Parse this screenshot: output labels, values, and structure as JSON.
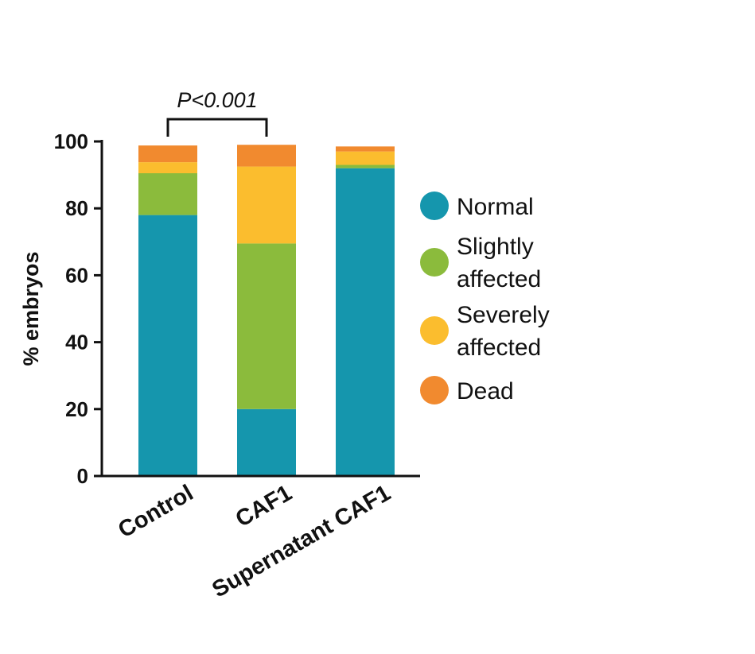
{
  "chart_data": {
    "type": "bar",
    "stacked": true,
    "title": "",
    "xlabel": "",
    "ylabel": "% embryos",
    "ylim": [
      0,
      100
    ],
    "yticks": [
      "0",
      "20",
      "40",
      "60",
      "80",
      "100"
    ],
    "categories": [
      "Control",
      "CAF1",
      "Supernatant CAF1"
    ],
    "series": [
      {
        "name": "Normal",
        "color": "#1596ad",
        "values": [
          78,
          20,
          92
        ]
      },
      {
        "name": "Slightly affected",
        "color": "#8bbb3c",
        "values": [
          12.5,
          49.5,
          1
        ]
      },
      {
        "name": "Severely affected",
        "color": "#fbbd2e",
        "values": [
          3.3,
          23,
          4
        ]
      },
      {
        "name": "Dead",
        "color": "#f18a2f",
        "values": [
          5,
          6.5,
          1.5
        ]
      }
    ],
    "legend_labels": [
      [
        "Normal"
      ],
      [
        "Slightly",
        "affected"
      ],
      [
        "Severely",
        "affected"
      ],
      [
        "Dead"
      ]
    ],
    "legend_position": "right",
    "annotation": {
      "text": "P<0.001",
      "between": [
        "Control",
        "CAF1"
      ]
    }
  }
}
